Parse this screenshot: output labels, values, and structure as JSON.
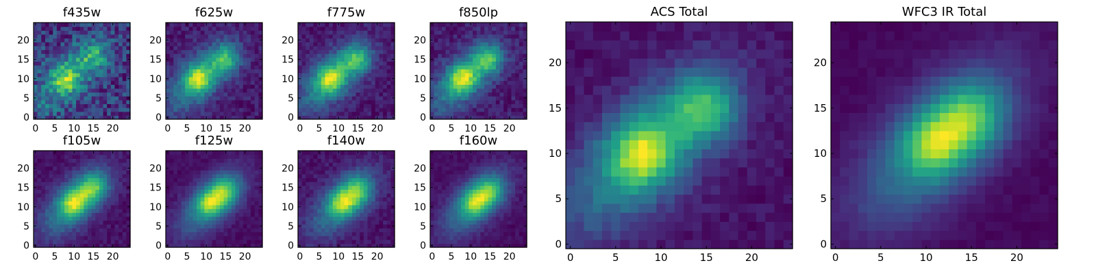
{
  "chart_data": [
    {
      "type": "heatmap",
      "title": "f435w",
      "colormap": "viridis",
      "xlim": [
        0,
        24
      ],
      "ylim": [
        0,
        24
      ],
      "xticks": [
        0,
        5,
        10,
        15,
        20
      ],
      "yticks": [
        0,
        5,
        10,
        15,
        20
      ],
      "grid": false,
      "noise": 0.55,
      "peak": {
        "x": 8,
        "y": 10
      },
      "secondary": {
        "x": 15,
        "y": 16
      }
    },
    {
      "type": "heatmap",
      "title": "f625w",
      "colormap": "viridis",
      "xlim": [
        0,
        24
      ],
      "ylim": [
        0,
        24
      ],
      "xticks": [
        0,
        5,
        10,
        15,
        20
      ],
      "yticks": [
        0,
        5,
        10,
        15,
        20
      ],
      "grid": false,
      "noise": 0.2,
      "peak": {
        "x": 8,
        "y": 10
      },
      "secondary": {
        "x": 15,
        "y": 15
      }
    },
    {
      "type": "heatmap",
      "title": "f775w",
      "colormap": "viridis",
      "xlim": [
        0,
        24
      ],
      "ylim": [
        0,
        24
      ],
      "xticks": [
        0,
        5,
        10,
        15,
        20
      ],
      "yticks": [
        0,
        5,
        10,
        15,
        20
      ],
      "grid": false,
      "noise": 0.18,
      "peak": {
        "x": 8,
        "y": 10
      },
      "secondary": {
        "x": 15,
        "y": 15
      }
    },
    {
      "type": "heatmap",
      "title": "f850lp",
      "colormap": "viridis",
      "xlim": [
        0,
        24
      ],
      "ylim": [
        0,
        24
      ],
      "xticks": [
        0,
        5,
        10,
        15,
        20
      ],
      "yticks": [
        0,
        5,
        10,
        15,
        20
      ],
      "grid": false,
      "noise": 0.2,
      "peak": {
        "x": 8,
        "y": 10
      },
      "secondary": {
        "x": 15,
        "y": 15
      }
    },
    {
      "type": "heatmap",
      "title": "f105w",
      "colormap": "viridis",
      "xlim": [
        0,
        24
      ],
      "ylim": [
        0,
        24
      ],
      "xticks": [
        0,
        5,
        10,
        15,
        20
      ],
      "yticks": [
        0,
        5,
        10,
        15,
        20
      ],
      "grid": false,
      "noise": 0.12,
      "peak": {
        "x": 10,
        "y": 11
      },
      "secondary": {
        "x": 15,
        "y": 15
      }
    },
    {
      "type": "heatmap",
      "title": "f125w",
      "colormap": "viridis",
      "xlim": [
        0,
        24
      ],
      "ylim": [
        0,
        24
      ],
      "xticks": [
        0,
        5,
        10,
        15,
        20
      ],
      "yticks": [
        0,
        5,
        10,
        15,
        20
      ],
      "grid": false,
      "noise": 0.1,
      "peak": {
        "x": 11,
        "y": 11
      },
      "secondary": {
        "x": 15,
        "y": 14
      }
    },
    {
      "type": "heatmap",
      "title": "f140w",
      "colormap": "viridis",
      "xlim": [
        0,
        24
      ],
      "ylim": [
        0,
        24
      ],
      "xticks": [
        0,
        5,
        10,
        15,
        20
      ],
      "yticks": [
        0,
        5,
        10,
        15,
        20
      ],
      "grid": false,
      "noise": 0.15,
      "peak": {
        "x": 11,
        "y": 11
      },
      "secondary": {
        "x": 15,
        "y": 14
      }
    },
    {
      "type": "heatmap",
      "title": "f160w",
      "colormap": "viridis",
      "xlim": [
        0,
        24
      ],
      "ylim": [
        0,
        24
      ],
      "xticks": [
        0,
        5,
        10,
        15,
        20
      ],
      "yticks": [
        0,
        5,
        10,
        15,
        20
      ],
      "grid": false,
      "noise": 0.1,
      "peak": {
        "x": 11,
        "y": 11
      },
      "secondary": {
        "x": 15,
        "y": 14
      }
    },
    {
      "type": "heatmap",
      "title": "ACS Total",
      "colormap": "viridis",
      "xlim": [
        0,
        24
      ],
      "ylim": [
        0,
        24
      ],
      "xticks": [
        0,
        5,
        10,
        15,
        20
      ],
      "yticks": [
        0,
        5,
        10,
        15,
        20
      ],
      "grid": false,
      "noise": 0.12,
      "peak": {
        "x": 8,
        "y": 10
      },
      "secondary": {
        "x": 15,
        "y": 15
      }
    },
    {
      "type": "heatmap",
      "title": "WFC3 IR Total",
      "colormap": "viridis",
      "xlim": [
        0,
        24
      ],
      "ylim": [
        0,
        24
      ],
      "xticks": [
        0,
        5,
        10,
        15,
        20
      ],
      "yticks": [
        0,
        5,
        10,
        15,
        20
      ],
      "grid": false,
      "noise": 0.06,
      "peak": {
        "x": 11,
        "y": 11
      },
      "secondary": {
        "x": 15,
        "y": 14
      }
    }
  ]
}
